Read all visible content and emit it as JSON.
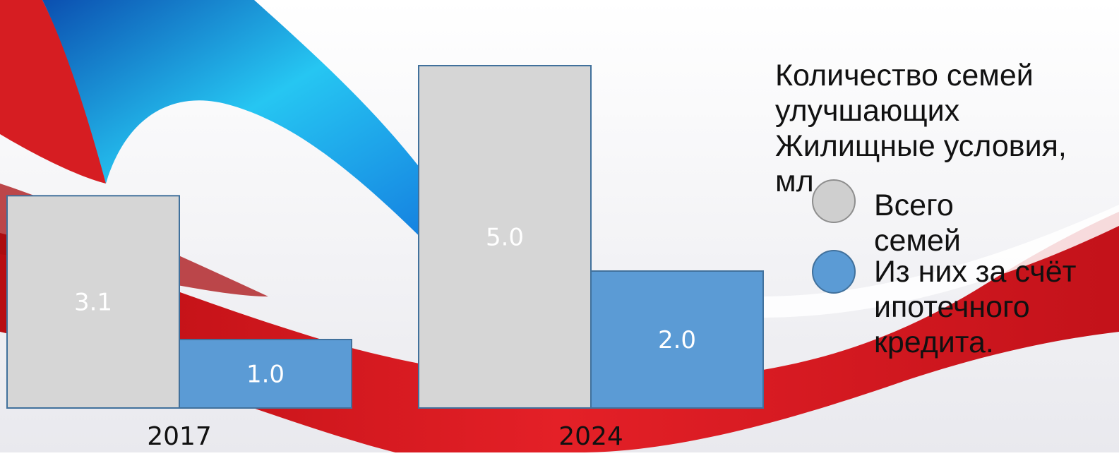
{
  "colors": {
    "total_fill": "#d6d6d6",
    "mortgage_fill": "#5b9bd5",
    "bar_stroke": "#41719c",
    "value_label": "#ffffff",
    "text": "#111111",
    "ribbon_red": "#d8171c",
    "ribbon_blue": "#1b8fe0"
  },
  "chart_data": {
    "type": "bar",
    "title_lines": [
      "Количество семей",
      "улучшающих",
      "Жилищные условия,",
      "мл"
    ],
    "categories": [
      "2017",
      "2024"
    ],
    "series": [
      {
        "name": "Всего семей",
        "values": [
          3.1,
          5.0
        ],
        "labels": [
          "3.1",
          "5.0"
        ],
        "color": "#d6d6d6"
      },
      {
        "name": "Из них за счёт ипотечного кредита.",
        "values": [
          1.0,
          2.0
        ],
        "labels": [
          "1.0",
          "2.0"
        ],
        "color": "#5b9bd5"
      }
    ],
    "legend_lines": [
      [
        "Всего",
        "семей"
      ],
      [
        "Из них за счёт",
        "ипотечного",
        "кредита."
      ]
    ],
    "grid": false,
    "legend_position": "right",
    "xlabel": "",
    "ylabel": ""
  }
}
